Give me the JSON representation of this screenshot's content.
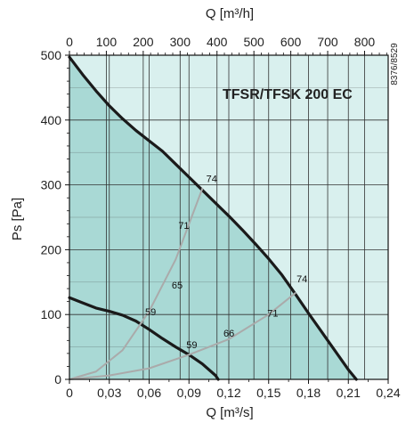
{
  "chart_data": {
    "type": "line",
    "title": "TFSR/TFSK 200 EC",
    "code": "8376/8529",
    "xlabel": "Q [m³/s]",
    "x2label": "Q [m³/h]",
    "ylabel": "Ps [Pa]",
    "xlim": [
      0,
      0.24
    ],
    "ylim": [
      0,
      500
    ],
    "x2lim": [
      0,
      864
    ],
    "x_ticks": [
      "0",
      "0,03",
      "0,06",
      "0,09",
      "0,12",
      "0,15",
      "0,18",
      "0,21",
      "0,24"
    ],
    "x2_ticks": [
      "0",
      "100",
      "200",
      "300",
      "400",
      "500",
      "600",
      "700",
      "800"
    ],
    "y_ticks": [
      "0",
      "100",
      "200",
      "300",
      "400",
      "500"
    ],
    "grid": true,
    "colors": {
      "fill_dark": "#a9d9d5",
      "fill_light": "#d9f0ee",
      "grid": "#333333",
      "fan_curve": "#1a1a1a",
      "iso_curve": "#aaaaaa"
    },
    "series": [
      {
        "kind": "max-curve",
        "x": [
          0,
          0.01,
          0.02,
          0.03,
          0.04,
          0.05,
          0.06,
          0.07,
          0.08,
          0.09,
          0.1,
          0.11,
          0.12,
          0.13,
          0.14,
          0.15,
          0.16,
          0.17,
          0.18,
          0.19,
          0.2,
          0.21,
          0.216
        ],
        "y": [
          497,
          470,
          445,
          422,
          402,
          384,
          368,
          352,
          332,
          312,
          292,
          272,
          252,
          231,
          209,
          186,
          161,
          132,
          102,
          73,
          44,
          15,
          0
        ]
      },
      {
        "kind": "min-curve",
        "x": [
          0,
          0.01,
          0.02,
          0.03,
          0.04,
          0.05,
          0.06,
          0.07,
          0.08,
          0.09,
          0.1,
          0.11,
          0.112
        ],
        "y": [
          126,
          118,
          110,
          105,
          99,
          90,
          77,
          63,
          50,
          38,
          24,
          6,
          0
        ]
      },
      {
        "kind": "system-curve",
        "x": [
          0,
          0.02,
          0.04,
          0.06,
          0.08,
          0.1
        ],
        "y": [
          0,
          12,
          45,
          105,
          185,
          294
        ]
      },
      {
        "kind": "system-curve",
        "x": [
          0,
          0.03,
          0.06,
          0.09,
          0.12,
          0.15,
          0.17
        ],
        "y": [
          0,
          6,
          17,
          38,
          62,
          100,
          133
        ]
      }
    ],
    "annotations": [
      {
        "text": "74",
        "x": 0.103,
        "y": 304
      },
      {
        "text": "71",
        "x": 0.082,
        "y": 232
      },
      {
        "text": "65",
        "x": 0.077,
        "y": 140
      },
      {
        "text": "59",
        "x": 0.057,
        "y": 99
      },
      {
        "text": "74",
        "x": 0.171,
        "y": 150
      },
      {
        "text": "71",
        "x": 0.149,
        "y": 97
      },
      {
        "text": "66",
        "x": 0.116,
        "y": 66
      },
      {
        "text": "59",
        "x": 0.088,
        "y": 48
      }
    ]
  }
}
